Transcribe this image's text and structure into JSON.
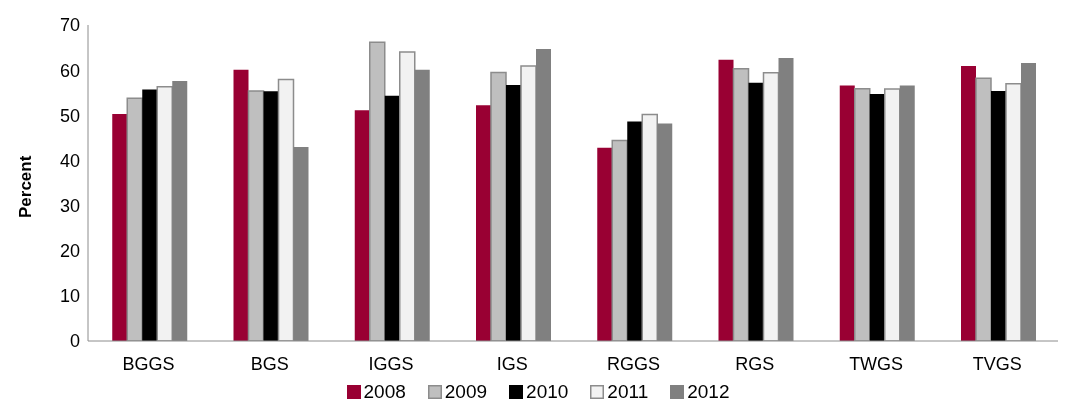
{
  "chart_data": {
    "type": "bar",
    "ylabel": "Percent",
    "categories": [
      "BGGS",
      "BGS",
      "IGGS",
      "IGS",
      "RGGS",
      "RGS",
      "TWGS",
      "TVGS"
    ],
    "series": [
      {
        "name": "2008",
        "color": "#990033",
        "values": [
          50.3,
          60.1,
          51.1,
          52.2,
          42.8,
          62.3,
          56.6,
          60.9
        ]
      },
      {
        "name": "2009",
        "color": "#bfbfbf",
        "values": [
          53.8,
          55.4,
          66.2,
          59.5,
          44.4,
          60.3,
          55.9,
          58.2
        ]
      },
      {
        "name": "2010",
        "color": "#000000",
        "values": [
          55.7,
          55.3,
          54.3,
          56.7,
          48.6,
          57.2,
          54.7,
          55.4
        ]
      },
      {
        "name": "2011",
        "color": "#f2f2f2",
        "values": [
          56.3,
          57.9,
          64.0,
          60.9,
          50.2,
          59.4,
          55.8,
          57.0
        ]
      },
      {
        "name": "2012",
        "color": "#808080",
        "values": [
          57.6,
          43.0,
          60.1,
          64.7,
          48.2,
          62.7,
          56.6,
          61.6
        ]
      }
    ],
    "ylim": [
      0,
      70
    ],
    "yticks": [
      0,
      10,
      20,
      30,
      40,
      50,
      60,
      70
    ],
    "grid": false,
    "legend": "bottom"
  }
}
